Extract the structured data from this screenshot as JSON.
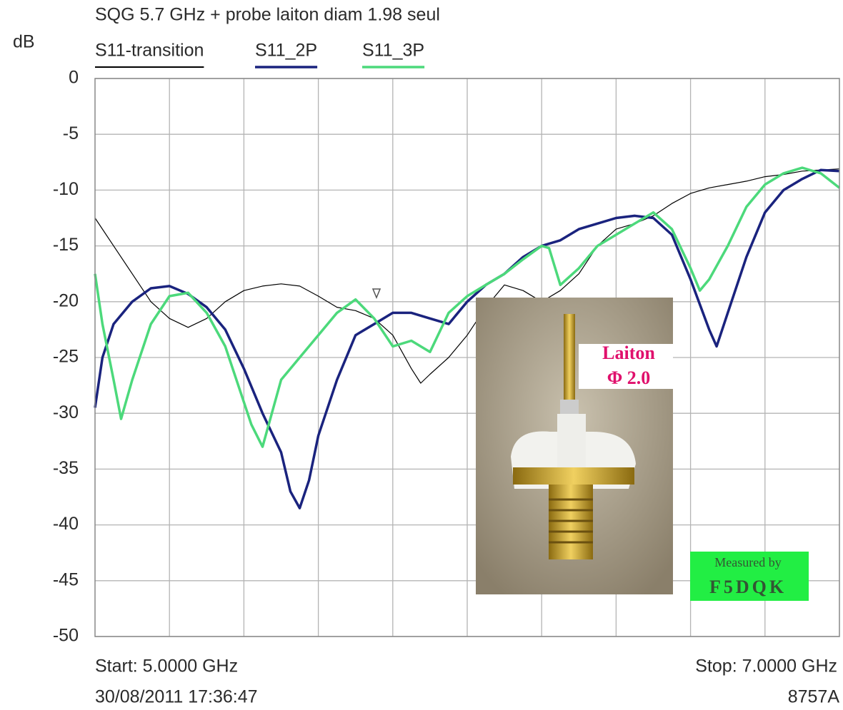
{
  "chart_data": {
    "type": "line",
    "title": "SQG 5.7 GHz + probe laiton diam 1.98 seul",
    "y_label": "dB",
    "xlim": [
      5.0,
      7.0
    ],
    "ylim": [
      -50,
      0
    ],
    "yticks": [
      0,
      -5,
      -10,
      -15,
      -20,
      -25,
      -30,
      -35,
      -40,
      -45,
      -50
    ],
    "grid": true,
    "start_label": "Start: 5.0000 GHz",
    "stop_label": "Stop: 7.0000 GHz",
    "timestamp": "30/08/2011 17:36:47",
    "instrument": "8757A",
    "inset_label_1": "Laiton",
    "inset_label_2": "Φ 2.0",
    "badge_line_1": "Measured by",
    "badge_line_2": "F5DQK",
    "series": [
      {
        "name": "S11-transition",
        "color": "#000000",
        "width": 1.2,
        "x": [
          5.0,
          5.05,
          5.1,
          5.15,
          5.2,
          5.25,
          5.3,
          5.35,
          5.4,
          5.45,
          5.5,
          5.55,
          5.6,
          5.65,
          5.7,
          5.75,
          5.8,
          5.85,
          5.875,
          5.9,
          5.95,
          6.0,
          6.05,
          6.1,
          6.15,
          6.2,
          6.25,
          6.3,
          6.35,
          6.4,
          6.45,
          6.5,
          6.55,
          6.6,
          6.65,
          6.7,
          6.75,
          6.8,
          6.85,
          6.9,
          6.95,
          7.0
        ],
        "values": [
          -12.5,
          -15,
          -17.5,
          -20,
          -21.5,
          -22.3,
          -21.5,
          -20,
          -19,
          -18.6,
          -18.4,
          -18.6,
          -19.5,
          -20.5,
          -20.8,
          -21.5,
          -23,
          -26,
          -27.3,
          -26.5,
          -25,
          -23,
          -20.5,
          -18.5,
          -19,
          -20,
          -19,
          -17.5,
          -15,
          -13.5,
          -13,
          -12.3,
          -11.2,
          -10.3,
          -9.8,
          -9.5,
          -9.2,
          -8.8,
          -8.6,
          -8.3,
          -8.2,
          -8.1
        ]
      },
      {
        "name": "S11_2P",
        "color": "#1a237e",
        "width": 3.5,
        "x": [
          5.0,
          5.02,
          5.05,
          5.1,
          5.15,
          5.2,
          5.25,
          5.3,
          5.35,
          5.4,
          5.45,
          5.5,
          5.525,
          5.55,
          5.575,
          5.6,
          5.65,
          5.7,
          5.75,
          5.8,
          5.85,
          5.9,
          5.95,
          6.0,
          6.05,
          6.1,
          6.15,
          6.2,
          6.25,
          6.3,
          6.35,
          6.4,
          6.45,
          6.5,
          6.55,
          6.6,
          6.65,
          6.67,
          6.7,
          6.75,
          6.8,
          6.85,
          6.9,
          6.95,
          7.0
        ],
        "values": [
          -29.5,
          -25,
          -22,
          -20,
          -18.8,
          -18.6,
          -19.3,
          -20.5,
          -22.5,
          -26,
          -30,
          -33.5,
          -37,
          -38.5,
          -36,
          -32,
          -27,
          -23,
          -22,
          -21,
          -21,
          -21.5,
          -22,
          -20,
          -18.5,
          -17.5,
          -16,
          -15,
          -14.5,
          -13.5,
          -13,
          -12.5,
          -12.3,
          -12.5,
          -14,
          -18,
          -22.5,
          -24,
          -21,
          -16,
          -12,
          -10,
          -9,
          -8.2,
          -8.3
        ]
      },
      {
        "name": "S11_3P",
        "color": "#4cd97b",
        "width": 3.5,
        "x": [
          5.0,
          5.02,
          5.05,
          5.07,
          5.1,
          5.15,
          5.2,
          5.25,
          5.3,
          5.35,
          5.4,
          5.42,
          5.45,
          5.475,
          5.5,
          5.55,
          5.6,
          5.65,
          5.7,
          5.75,
          5.8,
          5.85,
          5.9,
          5.95,
          6.0,
          6.05,
          6.1,
          6.15,
          6.2,
          6.22,
          6.25,
          6.3,
          6.35,
          6.4,
          6.45,
          6.5,
          6.55,
          6.6,
          6.625,
          6.65,
          6.7,
          6.75,
          6.8,
          6.85,
          6.9,
          6.95,
          7.0
        ],
        "values": [
          -17.5,
          -22,
          -27,
          -30.5,
          -27,
          -22,
          -19.5,
          -19.2,
          -21,
          -24,
          -29,
          -31,
          -33,
          -30,
          -27,
          -25,
          -23,
          -21,
          -19.8,
          -21.5,
          -24,
          -23.5,
          -24.5,
          -21,
          -19.5,
          -18.5,
          -17.5,
          -16.2,
          -15,
          -15.2,
          -18.5,
          -17,
          -15,
          -14,
          -13,
          -12,
          -13.5,
          -17,
          -19,
          -18,
          -15,
          -11.5,
          -9.5,
          -8.5,
          -8,
          -8.5,
          -9.8
        ]
      }
    ]
  }
}
